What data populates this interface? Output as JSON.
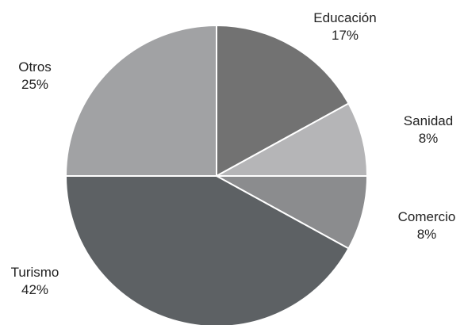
{
  "chart_data": {
    "type": "pie",
    "title": "",
    "slices": [
      {
        "label": "Educación",
        "pct_label": "17%",
        "value": 17,
        "color": "#727272"
      },
      {
        "label": "Sanidad",
        "pct_label": "8%",
        "value": 8,
        "color": "#b5b5b7"
      },
      {
        "label": "Comercio",
        "pct_label": "8%",
        "value": 8,
        "color": "#8b8c8e"
      },
      {
        "label": "Turismo",
        "pct_label": "42%",
        "value": 42,
        "color": "#5d6164"
      },
      {
        "label": "Otros",
        "pct_label": "25%",
        "value": 25,
        "color": "#a1a2a4"
      }
    ],
    "start": "12 o'clock",
    "direction": "clockwise"
  }
}
